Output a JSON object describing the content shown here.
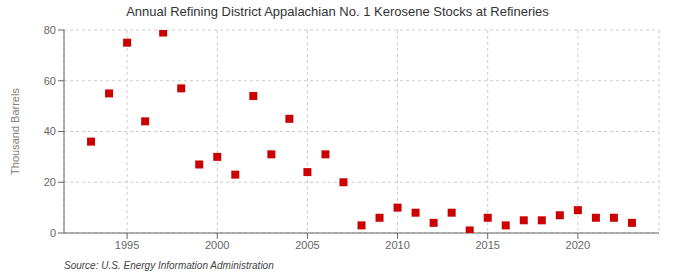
{
  "chart_data": {
    "type": "scatter",
    "title": "Annual Refining District Appalachian No. 1 Kerosene Stocks at Refineries",
    "ylabel": "Thousand Barrels",
    "annotation": "Source: U.S. Energy Information Administration",
    "x": [
      1993,
      1994,
      1995,
      1996,
      1997,
      1998,
      1999,
      2000,
      2001,
      2002,
      2003,
      2004,
      2005,
      2006,
      2007,
      2008,
      2009,
      2010,
      2011,
      2012,
      2013,
      2014,
      2015,
      2016,
      2017,
      2018,
      2019,
      2020,
      2021,
      2022,
      2023
    ],
    "values": [
      36,
      55,
      75,
      44,
      79,
      57,
      27,
      30,
      23,
      54,
      31,
      45,
      24,
      31,
      20,
      3,
      6,
      10,
      8,
      4,
      8,
      1,
      6,
      3,
      5,
      5,
      7,
      9,
      6,
      6,
      4
    ],
    "color": "#cc0000",
    "marker": "square",
    "xlim": [
      1991.5,
      2024.5
    ],
    "xticks": [
      1995,
      2000,
      2005,
      2010,
      2015,
      2020
    ],
    "ylim": [
      0,
      80
    ],
    "yticks": [
      0,
      20,
      40,
      60,
      80
    ],
    "grid": true
  }
}
